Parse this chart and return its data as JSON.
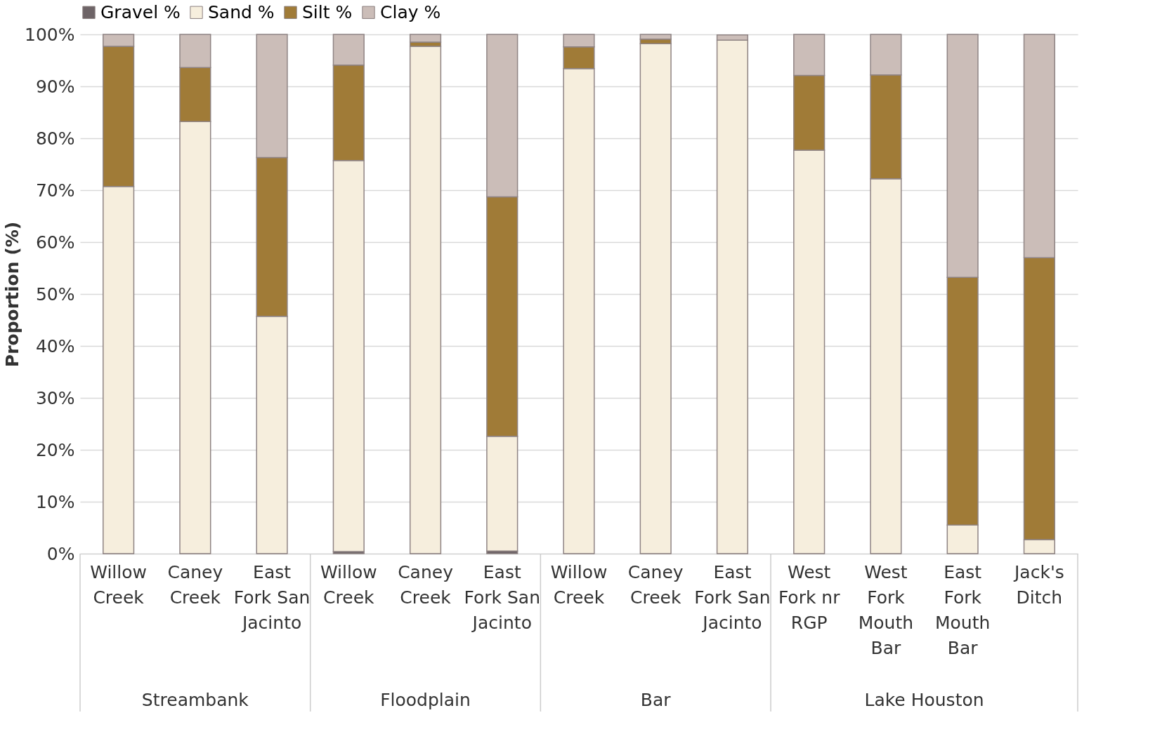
{
  "chart_data": {
    "type": "bar",
    "stacked": true,
    "ylabel": "Proportion (%)",
    "legend": "top",
    "grid": "y",
    "categories": [
      "Willow Creek",
      "Caney Creek",
      "East Fork San Jacinto",
      "Willow Creek",
      "Caney Creek",
      "East Fork San Jacinto",
      "Willow Creek",
      "Caney Creek",
      "East Fork San Jacinto",
      "West Fork nr RGP",
      "West Fork Mouth Bar",
      "East Fork Mouth Bar",
      "Jack's Ditch"
    ],
    "annotations": [
      "Streambank",
      "Floodplain",
      "Bar",
      "Lake Houston"
    ],
    "ylim": [
      0,
      100
    ],
    "yticks": [
      {
        "value": 0,
        "label": "0%"
      },
      {
        "value": 10,
        "label": "10%"
      },
      {
        "value": 20,
        "label": "20%"
      },
      {
        "value": 30,
        "label": "30%"
      },
      {
        "value": 40,
        "label": "40%"
      },
      {
        "value": 50,
        "label": "50%"
      },
      {
        "value": 60,
        "label": "60%"
      },
      {
        "value": 70,
        "label": "70%"
      },
      {
        "value": 80,
        "label": "80%"
      },
      {
        "value": 90,
        "label": "90%"
      },
      {
        "value": 100,
        "label": "100%"
      }
    ],
    "series": [
      {
        "name": "Gravel %",
        "color": "#6e6467",
        "values": [
          0,
          0,
          0,
          0.4,
          0,
          0.5,
          0,
          0,
          0,
          0,
          0,
          0,
          0
        ]
      },
      {
        "name": "Sand %",
        "color": "#f6eedd",
        "values": [
          70.7,
          83.2,
          45.7,
          75.3,
          97.7,
          22.1,
          93.4,
          98.2,
          98.9,
          77.7,
          72.2,
          5.5,
          2.7
        ]
      },
      {
        "name": "Silt %",
        "color": "#a07b37",
        "values": [
          27.0,
          10.4,
          30.6,
          18.4,
          0.8,
          46.1,
          4.2,
          0.9,
          null,
          14.4,
          20.0,
          47.7,
          54.3
        ]
      },
      {
        "name": "Clay %",
        "color": "#cbbdb8",
        "values": [
          2.3,
          6.4,
          23.7,
          5.9,
          1.5,
          31.3,
          2.4,
          0.9,
          1.0,
          7.9,
          7.8,
          46.8,
          43.0
        ]
      }
    ]
  }
}
